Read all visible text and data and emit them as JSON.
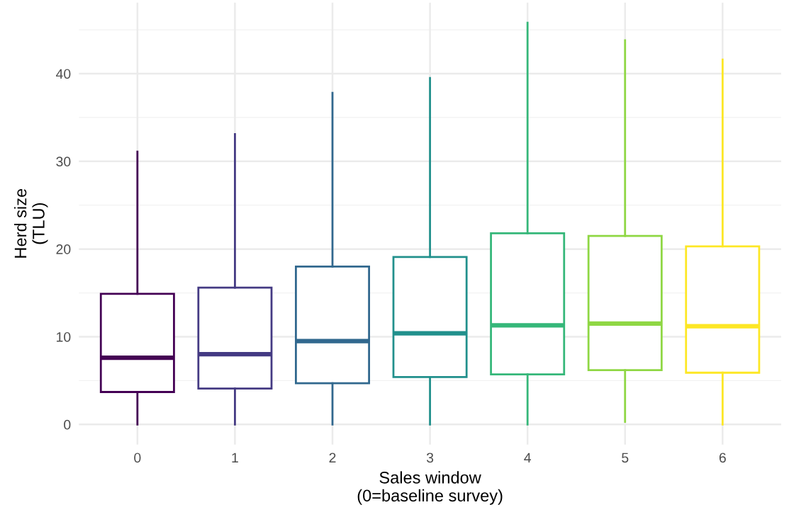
{
  "chart_data": {
    "type": "box",
    "categories": [
      "0",
      "1",
      "2",
      "3",
      "4",
      "5",
      "6"
    ],
    "colors": [
      "#440154",
      "#443a83",
      "#31688e",
      "#21908c",
      "#35b779",
      "#8fd744",
      "#fde725"
    ],
    "boxes": [
      {
        "low": 0,
        "q1": 3.7,
        "median": 7.6,
        "q3": 14.9,
        "high": 31.1
      },
      {
        "low": 0,
        "q1": 4.1,
        "median": 8.0,
        "q3": 15.6,
        "high": 33.1
      },
      {
        "low": 0,
        "q1": 4.7,
        "median": 9.5,
        "q3": 18.0,
        "high": 37.8
      },
      {
        "low": 0,
        "q1": 5.4,
        "median": 10.4,
        "q3": 19.1,
        "high": 39.5
      },
      {
        "low": 0,
        "q1": 5.7,
        "median": 11.3,
        "q3": 21.8,
        "high": 45.8
      },
      {
        "low": 0.3,
        "q1": 6.2,
        "median": 11.5,
        "q3": 21.5,
        "high": 43.8
      },
      {
        "low": 0,
        "q1": 5.9,
        "median": 11.2,
        "q3": 20.3,
        "high": 41.6
      }
    ],
    "xlabel": "Sales window\n(0=baseline survey)",
    "ylabel": "Herd size\n(TLU)",
    "ylim": [
      -2.3,
      48.1
    ],
    "yticks": [
      0,
      10,
      20,
      30,
      40
    ],
    "grid": true
  }
}
